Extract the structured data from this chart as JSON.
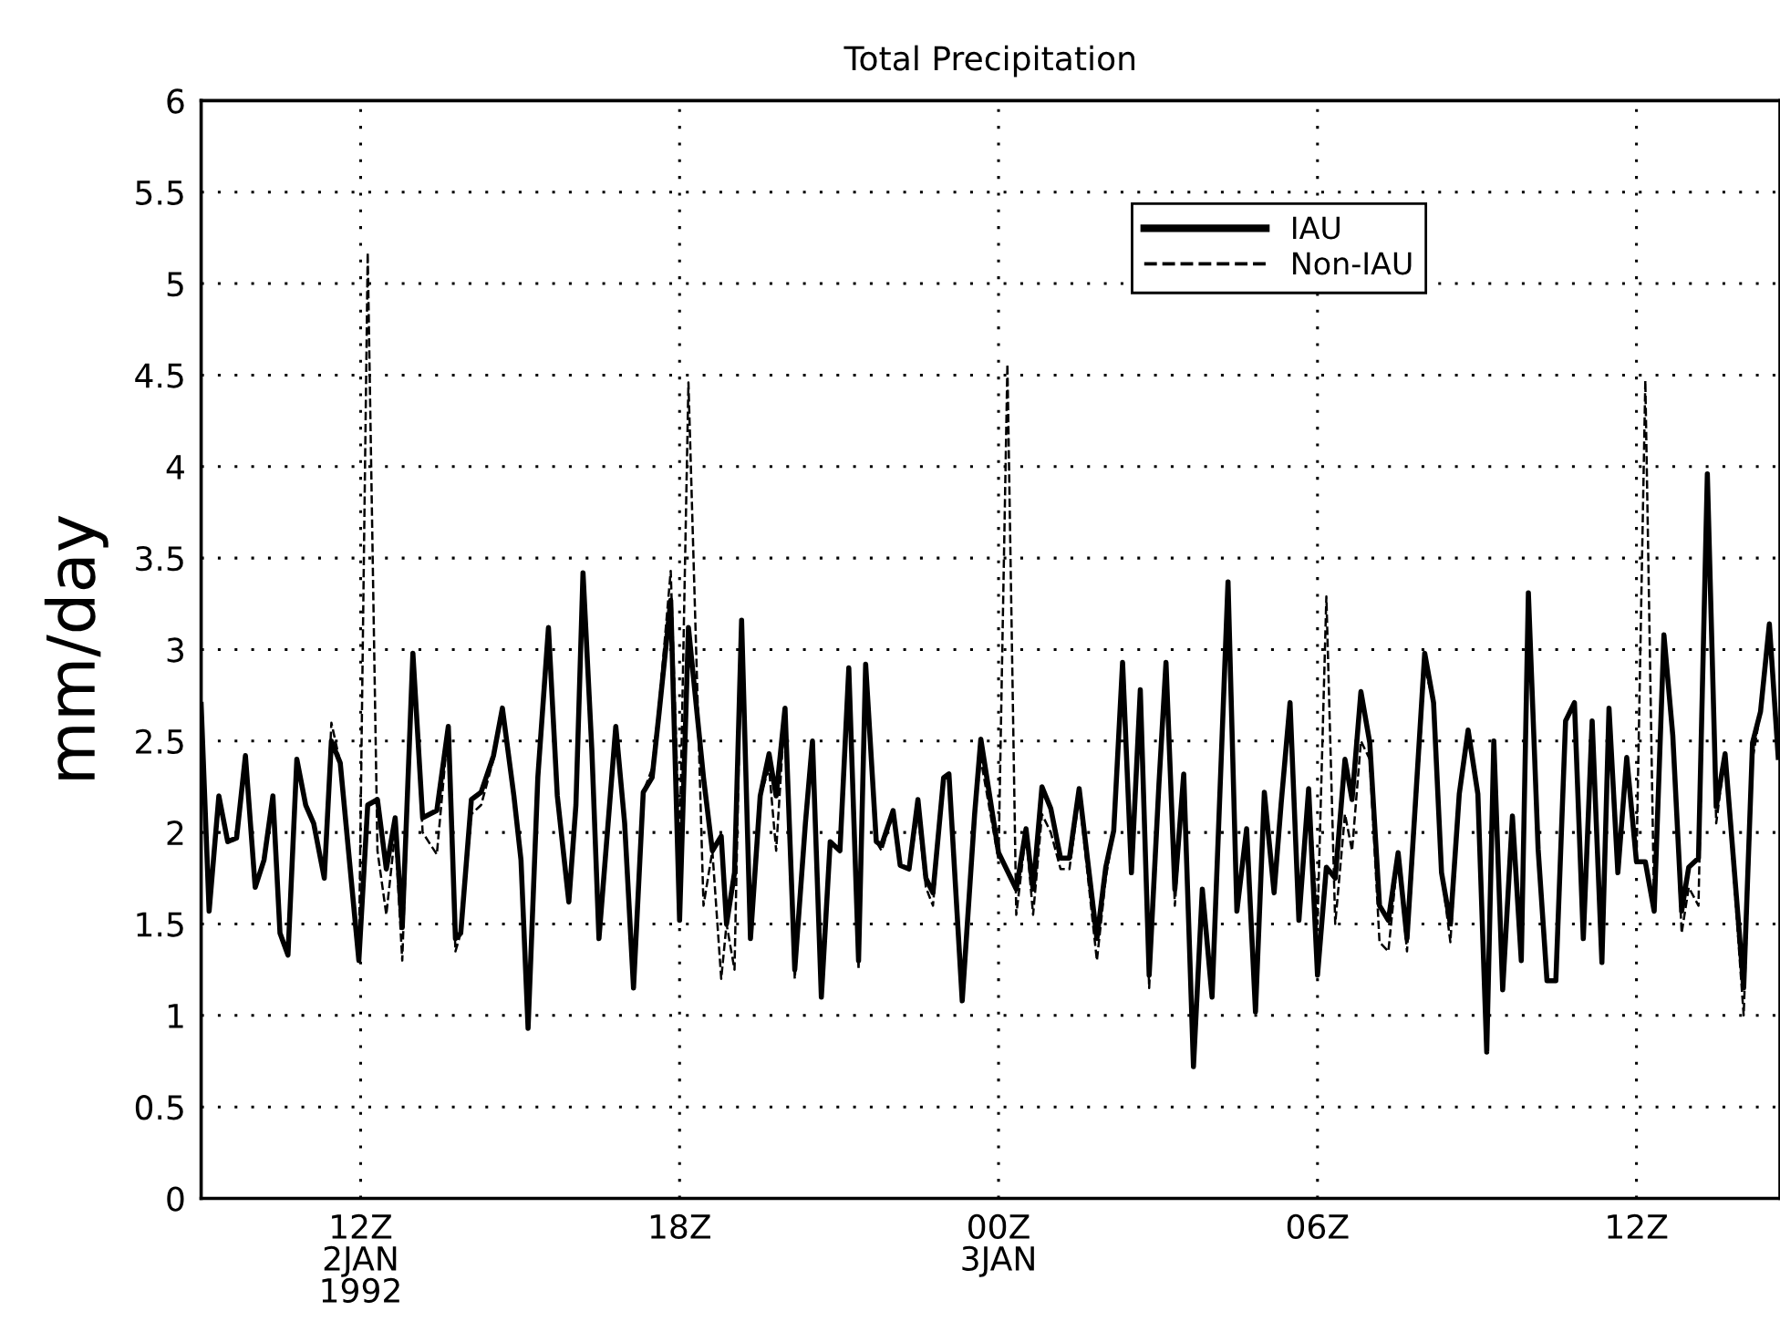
{
  "chart_data": {
    "type": "line",
    "title": "Total Precipitation",
    "ylabel": "mm/day",
    "x": [
      "1992-01-02T09:00",
      "1992-01-02T09:09",
      "1992-01-02T09:20",
      "1992-01-02T09:30",
      "1992-01-02T09:40",
      "1992-01-02T09:50",
      "1992-01-02T10:01",
      "1992-01-02T10:11",
      "1992-01-02T10:21",
      "1992-01-02T10:29",
      "1992-01-02T10:38",
      "1992-01-02T10:48",
      "1992-01-02T10:58",
      "1992-01-02T11:07",
      "1992-01-02T11:19",
      "1992-01-02T11:27",
      "1992-01-02T11:37",
      "1992-01-02T11:58",
      "1992-01-02T12:08",
      "1992-01-02T12:19",
      "1992-01-02T12:29",
      "1992-01-02T12:39",
      "1992-01-02T12:47",
      "1992-01-02T12:59",
      "1992-01-02T13:10",
      "1992-01-02T13:26",
      "1992-01-02T13:39",
      "1992-01-02T13:47",
      "1992-01-02T13:53",
      "1992-01-02T14:05",
      "1992-01-02T14:16",
      "1992-01-02T14:30",
      "1992-01-02T14:40",
      "1992-01-02T14:53",
      "1992-01-02T15:01",
      "1992-01-02T15:09",
      "1992-01-02T15:20",
      "1992-01-02T15:32",
      "1992-01-02T15:42",
      "1992-01-02T15:55",
      "1992-01-02T16:03",
      "1992-01-02T16:11",
      "1992-01-02T16:21",
      "1992-01-02T16:29",
      "1992-01-02T16:48",
      "1992-01-02T16:58",
      "1992-01-02T17:08",
      "1992-01-02T17:19",
      "1992-01-02T17:29",
      "1992-01-02T17:37",
      "1992-01-02T17:50",
      "1992-01-02T18:00",
      "1992-01-02T18:10",
      "1992-01-02T18:27",
      "1992-01-02T18:37",
      "1992-01-02T18:47",
      "1992-01-02T18:53",
      "1992-01-02T19:02",
      "1992-01-02T19:10",
      "1992-01-02T19:20",
      "1992-01-02T19:31",
      "1992-01-02T19:41",
      "1992-01-02T19:49",
      "1992-01-02T19:59",
      "1992-01-02T20:10",
      "1992-01-02T20:22",
      "1992-01-02T20:30",
      "1992-01-02T20:40",
      "1992-01-02T20:50",
      "1992-01-02T21:01",
      "1992-01-02T21:11",
      "1992-01-02T21:22",
      "1992-01-02T21:30",
      "1992-01-02T21:42",
      "1992-01-02T21:48",
      "1992-01-02T22:01",
      "1992-01-02T22:09",
      "1992-01-02T22:19",
      "1992-01-02T22:29",
      "1992-01-02T22:38",
      "1992-01-02T22:46",
      "1992-01-02T22:58",
      "1992-01-02T23:04",
      "1992-01-02T23:19",
      "1992-01-02T23:33",
      "1992-01-02T23:40",
      "1992-01-03T00:00",
      "1992-01-03T00:10",
      "1992-01-03T00:20",
      "1992-01-03T00:31",
      "1992-01-03T00:39",
      "1992-01-03T00:49",
      "1992-01-03T00:59",
      "1992-01-03T01:10",
      "1992-01-03T01:20",
      "1992-01-03T01:31",
      "1992-01-03T01:51",
      "1992-01-03T02:01",
      "1992-01-03T02:10",
      "1992-01-03T02:20",
      "1992-01-03T02:30",
      "1992-01-03T02:40",
      "1992-01-03T02:50",
      "1992-01-03T03:01",
      "1992-01-03T03:09",
      "1992-01-03T03:19",
      "1992-01-03T03:29",
      "1992-01-03T03:40",
      "1992-01-03T03:50",
      "1992-01-03T04:01",
      "1992-01-03T04:19",
      "1992-01-03T04:29",
      "1992-01-03T04:40",
      "1992-01-03T04:50",
      "1992-01-03T05:00",
      "1992-01-03T05:11",
      "1992-01-03T05:19",
      "1992-01-03T05:29",
      "1992-01-03T05:39",
      "1992-01-03T05:50",
      "1992-01-03T06:00",
      "1992-01-03T06:10",
      "1992-01-03T06:20",
      "1992-01-03T06:31",
      "1992-01-03T06:39",
      "1992-01-03T06:49",
      "1992-01-03T06:59",
      "1992-01-03T07:10",
      "1992-01-03T07:20",
      "1992-01-03T07:31",
      "1992-01-03T07:41",
      "1992-01-03T08:01",
      "1992-01-03T08:11",
      "1992-01-03T08:20",
      "1992-01-03T08:30",
      "1992-01-03T08:40",
      "1992-01-03T08:50",
      "1992-01-03T09:01",
      "1992-01-03T09:11",
      "1992-01-03T09:19",
      "1992-01-03T09:29",
      "1992-01-03T09:40",
      "1992-01-03T09:50",
      "1992-01-03T09:58",
      "1992-01-03T10:09",
      "1992-01-03T10:19",
      "1992-01-03T10:29",
      "1992-01-03T10:40",
      "1992-01-03T10:50",
      "1992-01-03T11:00",
      "1992-01-03T11:10",
      "1992-01-03T11:21",
      "1992-01-03T11:29",
      "1992-01-03T11:39",
      "1992-01-03T11:49",
      "1992-01-03T12:00",
      "1992-01-03T12:10",
      "1992-01-03T12:20",
      "1992-01-03T12:31",
      "1992-01-03T12:41",
      "1992-01-03T12:51",
      "1992-01-03T12:59",
      "1992-01-03T13:10",
      "1992-01-03T13:20",
      "1992-01-03T13:30",
      "1992-01-03T13:40",
      "1992-01-03T14:01",
      "1992-01-03T14:11",
      "1992-01-03T14:20",
      "1992-01-03T14:30",
      "1992-01-03T14:40"
    ],
    "series": [
      {
        "name": "IAU",
        "color": "#000000",
        "line_style": "solid",
        "values": [
          2.7,
          1.57,
          2.2,
          1.95,
          1.97,
          2.42,
          1.7,
          1.85,
          2.2,
          1.45,
          1.33,
          2.4,
          2.15,
          2.05,
          1.75,
          2.5,
          2.38,
          1.3,
          2.15,
          2.18,
          1.8,
          2.08,
          1.48,
          2.98,
          2.08,
          2.12,
          2.58,
          1.42,
          1.45,
          2.18,
          2.22,
          2.42,
          2.68,
          2.2,
          1.85,
          0.93,
          2.3,
          3.12,
          2.2,
          1.62,
          2.15,
          3.42,
          2.45,
          1.42,
          2.58,
          2.05,
          1.15,
          2.22,
          2.3,
          2.66,
          3.27,
          1.52,
          3.12,
          2.3,
          1.9,
          1.98,
          1.5,
          1.78,
          3.16,
          1.42,
          2.2,
          2.43,
          2.2,
          2.68,
          1.25,
          2.05,
          2.5,
          1.1,
          1.95,
          1.9,
          2.9,
          1.3,
          2.92,
          1.95,
          1.93,
          2.12,
          1.82,
          1.8,
          2.18,
          1.75,
          1.67,
          2.3,
          2.32,
          1.08,
          2.1,
          2.51,
          1.89,
          1.79,
          1.69,
          2.02,
          1.69,
          2.25,
          2.13,
          1.86,
          1.86,
          2.24,
          1.42,
          1.81,
          2.01,
          2.93,
          1.78,
          2.78,
          1.22,
          2.26,
          2.93,
          1.69,
          2.32,
          0.72,
          1.69,
          1.1,
          3.37,
          1.57,
          2.02,
          1.02,
          2.22,
          1.67,
          2.16,
          2.71,
          1.52,
          2.24,
          1.22,
          1.81,
          1.75,
          2.4,
          2.18,
          2.77,
          2.49,
          1.6,
          1.52,
          1.89,
          1.42,
          2.98,
          2.71,
          1.78,
          1.5,
          2.21,
          2.56,
          2.21,
          0.8,
          2.5,
          1.14,
          2.09,
          1.3,
          3.31,
          1.91,
          1.19,
          1.19,
          2.61,
          2.71,
          1.42,
          2.61,
          1.29,
          2.68,
          1.78,
          2.41,
          1.84,
          1.84,
          1.57,
          3.08,
          2.53,
          1.57,
          1.81,
          1.86,
          3.96,
          2.14,
          2.43,
          1.15,
          2.49,
          2.66,
          3.14,
          2.41
        ]
      },
      {
        "name": "Non-IAU",
        "color": "#000000",
        "line_style": "dashed",
        "values": [
          2.7,
          1.57,
          2.2,
          1.95,
          1.97,
          2.42,
          1.7,
          1.85,
          2.2,
          1.45,
          1.33,
          2.4,
          2.15,
          2.05,
          1.75,
          2.6,
          2.38,
          1.3,
          5.17,
          1.9,
          1.55,
          2.0,
          1.3,
          2.98,
          2.0,
          1.88,
          2.58,
          1.35,
          1.45,
          2.1,
          2.15,
          2.4,
          2.68,
          2.2,
          1.85,
          0.93,
          2.3,
          3.12,
          2.2,
          1.62,
          2.15,
          3.42,
          2.45,
          1.42,
          2.58,
          2.05,
          1.15,
          2.22,
          2.35,
          2.7,
          3.43,
          1.9,
          4.46,
          1.6,
          1.9,
          1.2,
          1.5,
          1.25,
          3.16,
          1.42,
          2.2,
          2.35,
          1.9,
          2.68,
          1.2,
          2.05,
          2.5,
          1.1,
          1.95,
          1.9,
          2.9,
          1.25,
          2.92,
          1.95,
          1.9,
          2.1,
          1.82,
          1.8,
          2.1,
          1.7,
          1.6,
          2.3,
          2.32,
          1.08,
          2.1,
          2.4,
          1.85,
          4.56,
          1.55,
          2.0,
          1.55,
          2.1,
          2.0,
          1.8,
          1.8,
          2.2,
          1.3,
          1.75,
          2.01,
          2.93,
          1.78,
          2.78,
          1.15,
          2.26,
          2.9,
          1.6,
          2.32,
          0.72,
          1.69,
          1.1,
          3.37,
          1.57,
          2.02,
          1.02,
          2.22,
          1.67,
          2.16,
          2.71,
          1.52,
          2.24,
          1.5,
          3.29,
          1.5,
          2.1,
          1.9,
          2.5,
          2.4,
          1.4,
          1.35,
          1.89,
          1.35,
          2.9,
          2.71,
          1.78,
          1.4,
          2.21,
          2.56,
          2.21,
          0.8,
          2.5,
          1.14,
          2.09,
          1.3,
          3.31,
          1.91,
          1.19,
          1.19,
          2.61,
          2.71,
          1.42,
          2.61,
          1.29,
          2.68,
          1.78,
          2.41,
          1.84,
          4.47,
          1.57,
          3.1,
          2.53,
          1.45,
          1.7,
          1.6,
          3.96,
          2.05,
          2.43,
          1.0,
          2.4,
          2.66,
          3.14,
          2.41
        ]
      }
    ],
    "xlim": [
      "1992-01-02T09:00",
      "1992-01-03T14:42"
    ],
    "xticks": [
      {
        "value": "1992-01-02T12:00",
        "label": "12Z\n2JAN\n1992"
      },
      {
        "value": "1992-01-02T18:00",
        "label": "18Z"
      },
      {
        "value": "1992-01-03T00:00",
        "label": "00Z\n3JAN"
      },
      {
        "value": "1992-01-03T06:00",
        "label": "06Z"
      },
      {
        "value": "1992-01-03T12:00",
        "label": "12Z"
      }
    ],
    "ylim": [
      0,
      6
    ],
    "yticks": [
      0,
      0.5,
      1,
      1.5,
      2,
      2.5,
      3,
      3.5,
      4,
      4.5,
      5,
      5.5,
      6
    ],
    "grid": true,
    "legend": "top right"
  }
}
